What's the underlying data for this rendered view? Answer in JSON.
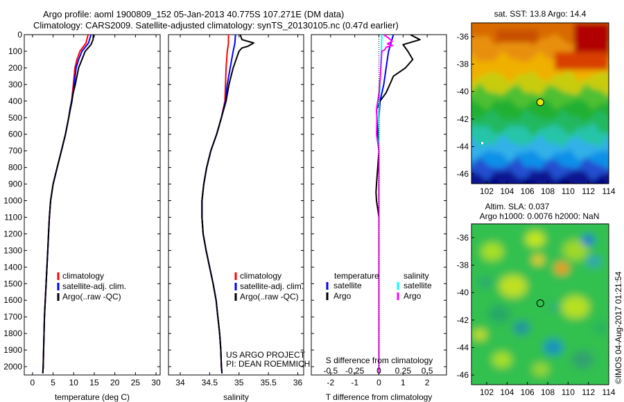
{
  "header": {
    "title_line1": "Argo profile: aoml 1900809_152 05-Jan-2013 40.775S 107.271E (DM data)",
    "title_line2": "Climatology: CARS2009. Satellite-adjusted climatology: synTS_20130105.nc (0.47d earlier)"
  },
  "colors": {
    "climatology": "#ff0000",
    "satellite": "#0000ff",
    "argo": "#000000",
    "salinity_satellite": "#00ffff",
    "salinity_argo": "#ff00ff"
  },
  "chart_data": [
    {
      "type": "line",
      "name": "temperature-profile",
      "xlabel": "temperature (deg C)",
      "xlim": [
        -2,
        31
      ],
      "ylim": [
        0,
        2050
      ],
      "y_reversed": true,
      "xticks": [
        0,
        5,
        10,
        15,
        20,
        25,
        30
      ],
      "yticks": [
        0,
        100,
        200,
        300,
        400,
        500,
        600,
        700,
        800,
        900,
        1000,
        1100,
        1200,
        1300,
        1400,
        1500,
        1600,
        1700,
        1800,
        1900,
        2000
      ],
      "legend": [
        "climatology",
        "satellite-adj. clim.",
        "Argo(..raw -QC)"
      ],
      "series": [
        {
          "name": "climatology",
          "depth": [
            0,
            50,
            100,
            150,
            200,
            300,
            400,
            500,
            600,
            700,
            800,
            900,
            1000,
            1100,
            1200,
            1300,
            1400,
            1500,
            1600,
            1700,
            1800,
            1900,
            2000,
            2040
          ],
          "values": [
            13.5,
            13.0,
            11.5,
            10.8,
            10.3,
            9.9,
            9.5,
            8.8,
            8.0,
            7.0,
            6.0,
            5.0,
            4.4,
            4.1,
            3.9,
            3.7,
            3.5,
            3.3,
            3.1,
            2.9,
            2.8,
            2.7,
            2.6,
            2.5
          ]
        },
        {
          "name": "satellite-adj. clim.",
          "depth": [
            0,
            50,
            100,
            150,
            200,
            300,
            400,
            500,
            600,
            700,
            800,
            900,
            1000,
            1100,
            1200,
            1300,
            1400,
            1500,
            1600,
            1700,
            1800,
            1900,
            2000,
            2040
          ],
          "values": [
            14.2,
            13.6,
            12.0,
            11.2,
            10.6,
            10.1,
            9.6,
            8.8,
            8.0,
            7.0,
            6.0,
            5.0,
            4.4,
            4.1,
            3.9,
            3.7,
            3.5,
            3.3,
            3.1,
            2.9,
            2.8,
            2.7,
            2.6,
            2.5
          ]
        },
        {
          "name": "Argo(..raw -QC)",
          "depth": [
            0,
            30,
            60,
            80,
            100,
            150,
            200,
            250,
            300,
            350,
            400,
            450,
            500,
            600,
            700,
            800,
            900,
            1000,
            1100,
            1200,
            1300,
            1400,
            1500,
            1600,
            1700,
            1800,
            1900,
            2000,
            2040
          ],
          "values": [
            14.8,
            14.7,
            14.2,
            13.5,
            12.8,
            12.0,
            11.2,
            10.8,
            10.4,
            9.9,
            9.5,
            9.1,
            8.8,
            8.0,
            7.0,
            6.0,
            5.0,
            4.4,
            4.1,
            3.9,
            3.7,
            3.5,
            3.3,
            3.1,
            2.9,
            2.8,
            2.7,
            2.6,
            2.5
          ]
        }
      ]
    },
    {
      "type": "line",
      "name": "salinity-profile",
      "xlabel": "salinity",
      "xlim": [
        33.8,
        36.1
      ],
      "ylim": [
        0,
        2050
      ],
      "y_reversed": true,
      "xticks": [
        34,
        34.5,
        35,
        35.5,
        36
      ],
      "legend": [
        "climatology",
        "satellite-adj. clim.",
        "Argo(..raw -QC)"
      ],
      "annotation": [
        "US ARGO PROJECT",
        "PI: DEAN ROEMMICH"
      ],
      "series": [
        {
          "name": "climatology",
          "depth": [
            0,
            50,
            100,
            200,
            300,
            400,
            500,
            600,
            700,
            800,
            900,
            1000,
            1100,
            1200,
            1300,
            1400,
            1500,
            1600,
            1700,
            1800,
            1900,
            2000,
            2040
          ],
          "values": [
            34.82,
            34.82,
            34.8,
            34.78,
            34.77,
            34.76,
            34.7,
            34.62,
            34.52,
            34.45,
            34.4,
            34.37,
            34.37,
            34.39,
            34.44,
            34.5,
            34.56,
            34.61,
            34.64,
            34.67,
            34.69,
            34.7,
            34.71
          ]
        },
        {
          "name": "satellite-adj. clim.",
          "depth": [
            0,
            50,
            100,
            200,
            300,
            400,
            500,
            600,
            700,
            800,
            900,
            1000,
            1100,
            1200,
            1300,
            1400,
            1500,
            1600,
            1700,
            1800,
            1900,
            2000,
            2040
          ],
          "values": [
            34.94,
            34.93,
            34.9,
            34.85,
            34.8,
            34.77,
            34.7,
            34.62,
            34.52,
            34.45,
            34.4,
            34.37,
            34.37,
            34.39,
            34.44,
            34.5,
            34.56,
            34.61,
            34.64,
            34.67,
            34.69,
            34.7,
            34.71
          ]
        },
        {
          "name": "Argo(..raw -QC)",
          "depth": [
            0,
            30,
            50,
            70,
            80,
            100,
            150,
            200,
            300,
            400,
            500,
            600,
            700,
            800,
            900,
            1000,
            1100,
            1200,
            1300,
            1400,
            1500,
            1600,
            1700,
            1800,
            1900,
            2000,
            2040
          ],
          "values": [
            35.02,
            35.05,
            35.25,
            35.15,
            35.05,
            35.0,
            34.95,
            34.9,
            34.83,
            34.78,
            34.7,
            34.62,
            34.52,
            34.45,
            34.4,
            34.37,
            34.37,
            34.39,
            34.44,
            34.5,
            34.56,
            34.61,
            34.64,
            34.67,
            34.69,
            34.7,
            34.71
          ]
        }
      ]
    },
    {
      "type": "line",
      "name": "difference-profile",
      "xlabel": "T difference from climatology",
      "x2label": "S difference from climatology",
      "xlim": [
        -2.8,
        2.8
      ],
      "ylim": [
        0,
        2050
      ],
      "y_reversed": true,
      "xticks": [
        -2,
        -1,
        0,
        1,
        2
      ],
      "x2ticks_values": [
        -0.5,
        -0.25,
        0,
        0.25,
        0.5
      ],
      "x2ticks_labels": [
        "-0.5",
        "-0.25",
        "0",
        "0.25",
        "0.5"
      ],
      "legend_temperature": {
        "heading": "temperature",
        "items": [
          "satellite",
          "Argo"
        ]
      },
      "legend_salinity": {
        "heading": "salinity",
        "items": [
          "satellite",
          "Argo"
        ]
      },
      "series": [
        {
          "name": "temperature satellite",
          "depth": [
            0,
            100,
            200,
            300,
            400,
            500,
            700,
            1000,
            1500,
            2000,
            2040
          ],
          "values": [
            0.6,
            0.4,
            0.3,
            0.2,
            0.05,
            0,
            0,
            0,
            0,
            0,
            0
          ]
        },
        {
          "name": "temperature Argo",
          "depth": [
            0,
            30,
            60,
            100,
            150,
            200,
            250,
            300,
            350,
            400,
            450,
            500,
            600,
            700,
            800,
            900,
            950,
            1000,
            1050,
            1100,
            1200,
            1500,
            2000,
            2040
          ],
          "values": [
            1.3,
            1.7,
            1.0,
            1.2,
            1.4,
            1.1,
            0.6,
            0.45,
            0.3,
            0.05,
            -0.1,
            -0.08,
            -0.05,
            0,
            -0.05,
            -0.1,
            -0.12,
            -0.1,
            -0.05,
            0,
            0,
            0,
            0,
            0
          ]
        },
        {
          "name": "salinity satellite",
          "depth": [
            0,
            100,
            200,
            300,
            400,
            500,
            700,
            1000,
            1500,
            2000,
            2040
          ],
          "values": [
            0.12,
            0.1,
            0.07,
            0.05,
            0.01,
            0,
            0,
            0,
            0,
            0,
            0
          ]
        },
        {
          "name": "salinity Argo",
          "depth": [
            0,
            20,
            40,
            55,
            65,
            75,
            90,
            100,
            150,
            200,
            250,
            300,
            350,
            400,
            450,
            500,
            600,
            650,
            700,
            1000,
            1500,
            2000,
            2040
          ],
          "values": [
            0.2,
            0.4,
            0.55,
            0.35,
            0.57,
            0.3,
            0.25,
            0.12,
            0.1,
            0.08,
            0.06,
            0.03,
            0.01,
            -0.05,
            -0.1,
            -0.08,
            -0.1,
            -0.05,
            0,
            0,
            0,
            0,
            0
          ]
        }
      ]
    },
    {
      "type": "heatmap",
      "name": "sst-map",
      "title": "sat. SST: 13.8 Argo: 14.4",
      "xlim": [
        100.5,
        114
      ],
      "ylim": [
        -46.7,
        -35
      ],
      "xticks": [
        102,
        104,
        106,
        108,
        110,
        112,
        114
      ],
      "yticks": [
        -36,
        -38,
        -40,
        -42,
        -44,
        -46
      ],
      "argo_marker": {
        "lon": 107.271,
        "lat": -40.775
      }
    },
    {
      "type": "heatmap",
      "name": "sla-map",
      "title_line1": "Altim. SLA: 0.037",
      "title_line2": "Argo h1000: 0.0076 h2000: NaN",
      "xlim": [
        100.5,
        114
      ],
      "ylim": [
        -46.7,
        -35
      ],
      "xticks": [
        102,
        104,
        106,
        108,
        110,
        112,
        114
      ],
      "yticks": [
        -36,
        -38,
        -40,
        -42,
        -44,
        -46
      ],
      "argo_marker": {
        "lon": 107.271,
        "lat": -40.775
      },
      "side_label": "©IMOS 04-Aug-2017 01:21:54"
    }
  ]
}
